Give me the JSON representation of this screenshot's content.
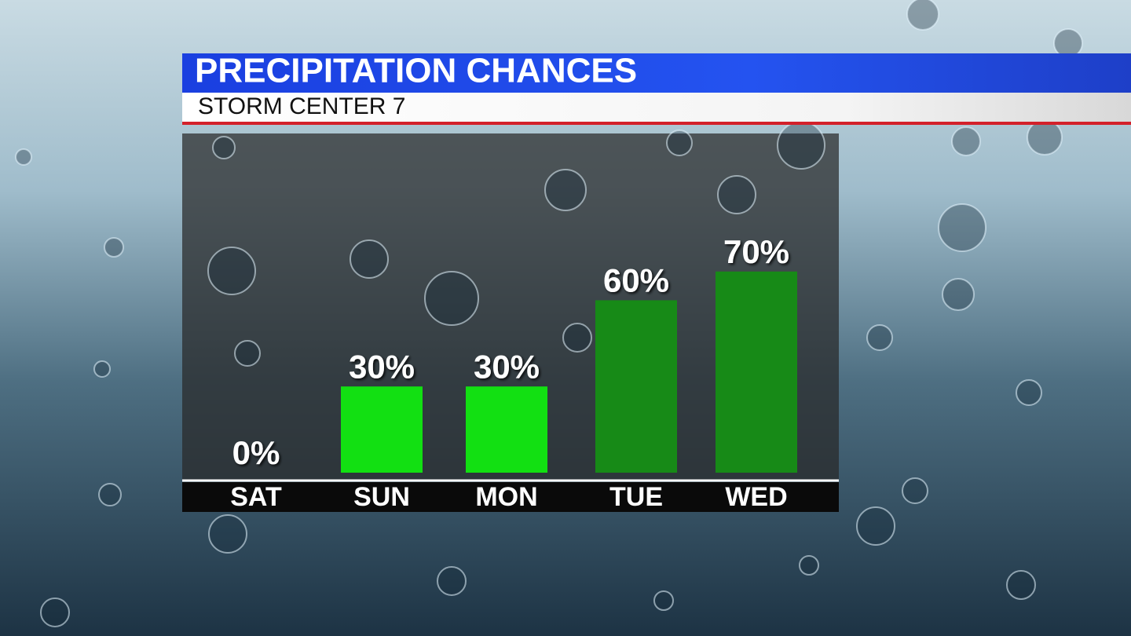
{
  "chart_data": {
    "type": "bar",
    "title": "PRECIPITATION CHANCES",
    "subtitle": "STORM CENTER 7",
    "categories": [
      "SAT",
      "SUN",
      "MON",
      "TUE",
      "WED"
    ],
    "values": [
      0,
      30,
      30,
      60,
      70
    ],
    "value_labels": [
      "0%",
      "30%",
      "30%",
      "60%",
      "70%"
    ],
    "colors": [
      "#12e012",
      "#12e012",
      "#12e012",
      "#178a17",
      "#178a17"
    ]
  }
}
